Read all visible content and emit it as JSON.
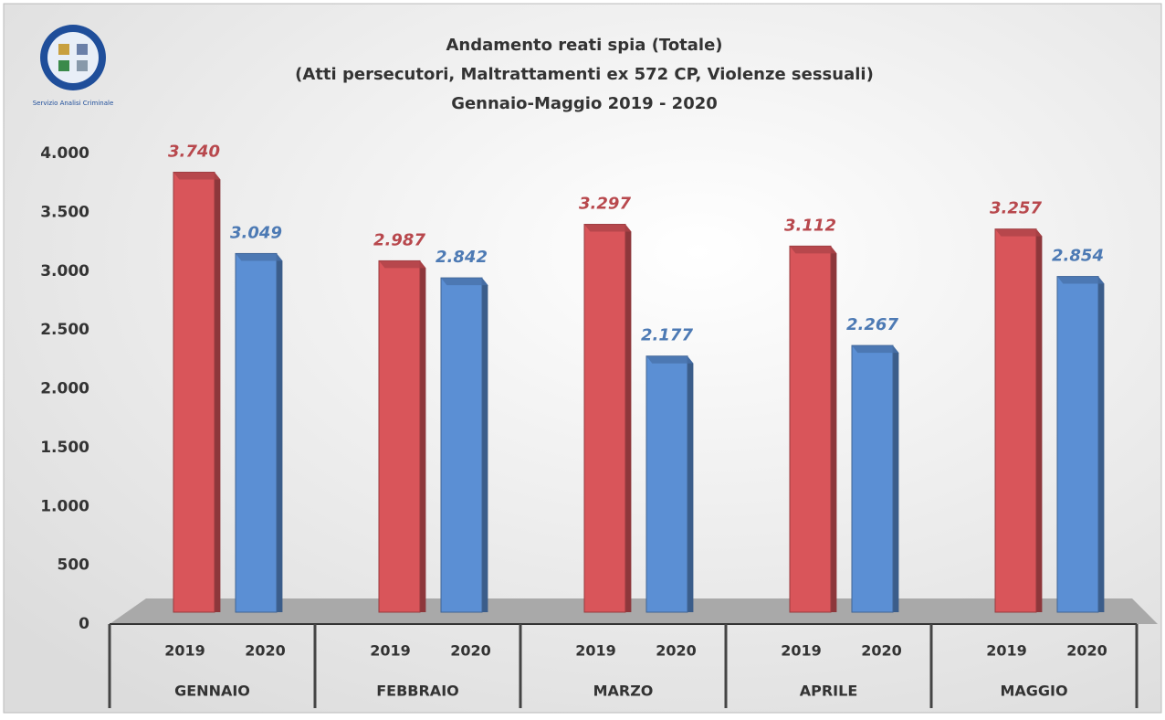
{
  "chart_data": {
    "type": "bar",
    "title": "Andamento reati spia (Totale)",
    "subtitle": "(Atti persecutori, Maltrattamenti ex 572 CP, Violenze sessuali)",
    "period": "Gennaio-Maggio 2019 - 2020",
    "logo_text": "Servizio Analisi Criminale",
    "categories": [
      "GENNAIO",
      "FEBBRAIO",
      "MARZO",
      "APRILE",
      "MAGGIO"
    ],
    "series": [
      {
        "name": "2019",
        "color": "#d9555a",
        "values": [
          3740,
          2987,
          3297,
          3112,
          3257
        ],
        "value_labels": [
          "3.740",
          "2.987",
          "3.297",
          "3.112",
          "3.257"
        ]
      },
      {
        "name": "2020",
        "color": "#5b8fd4",
        "values": [
          3049,
          2842,
          2177,
          2267,
          2854
        ],
        "value_labels": [
          "3.049",
          "2.842",
          "2.177",
          "2.267",
          "2.854"
        ]
      }
    ],
    "ylim": [
      0,
      4000
    ],
    "yticks": [
      0,
      500,
      {
        "value": 1000,
        "label": "1.000"
      },
      {
        "value": 1500,
        "label": "1.500"
      },
      {
        "value": 2000,
        "label": "2.000"
      },
      {
        "value": 2500,
        "label": "2.500"
      },
      {
        "value": 3000,
        "label": "3.000"
      },
      {
        "value": 3500,
        "label": "3.500"
      },
      {
        "value": 4000,
        "label": "4.000"
      }
    ],
    "grid": false
  }
}
